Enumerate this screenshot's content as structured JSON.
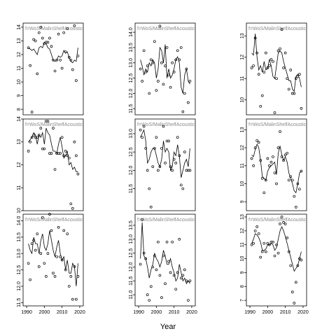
{
  "figure": {
    "xlabel": "Year"
  },
  "chart_data": [
    {
      "type": "scatter",
      "panel_label": "f=WoS/MalinShelfAcoustic",
      "xlim": [
        1988,
        2022
      ],
      "ylim": [
        7.6,
        14.3
      ],
      "yticks": [
        8,
        9,
        10,
        11,
        12,
        13,
        14
      ],
      "yticks_labels": [
        "8",
        "9",
        "10",
        "11",
        "12",
        "13",
        "14"
      ],
      "x_ticks_labels": [],
      "points_x": [
        1991,
        1992,
        1993,
        1994,
        1995,
        1996,
        1997,
        1998,
        1999,
        2000,
        2001,
        2002,
        2003,
        2004,
        2005,
        2006,
        2007,
        2008,
        2009,
        2010,
        2011,
        2012,
        2013,
        2014,
        2015,
        2016,
        2017,
        2018,
        2019
      ],
      "points_y": [
        12.5,
        11.2,
        7.8,
        13.1,
        13.0,
        10.6,
        13.6,
        14.0,
        13.2,
        12.8,
        12.9,
        12.9,
        13.2,
        12.6,
        11.6,
        10.8,
        11.6,
        13.5,
        11.6,
        11.0,
        13.6,
        12.2,
        13.9,
        11.8,
        11.6,
        10.9,
        14.1,
        10.1,
        11.9
      ],
      "line_x": [
        1991,
        1992,
        1993,
        1994,
        1995,
        1996,
        1997,
        1998,
        1999,
        2000,
        2001,
        2002,
        2003,
        2004,
        2005,
        2006,
        2007,
        2008,
        2009,
        2010,
        2011,
        2012,
        2013,
        2014,
        2015,
        2016,
        2017,
        2018,
        2019
      ],
      "line_y": [
        12.5,
        12.4,
        12.3,
        12.4,
        12.2,
        12.0,
        12.5,
        12.6,
        12.5,
        12.9,
        12.8,
        12.5,
        12.4,
        12.0,
        11.6,
        11.5,
        11.6,
        11.9,
        11.8,
        11.9,
        12.3,
        12.1,
        12.2,
        11.8,
        11.5,
        11.4,
        11.6,
        11.5,
        12.5
      ]
    },
    {
      "type": "scatter",
      "panel_label": "f=WoS/MalinShelfAcoustic",
      "xlim": [
        1988,
        2022
      ],
      "ylim": [
        11.3,
        14.3
      ],
      "yticks": [
        11.5,
        12.0,
        12.5,
        13.0,
        13.5,
        14.0
      ],
      "yticks_labels": [
        "11.5",
        "12.0",
        "12.5",
        "13.0",
        "13.5",
        "14.0"
      ],
      "x_ticks_labels": [],
      "points_x": [
        1991,
        1992,
        1993,
        1994,
        1995,
        1996,
        1997,
        1998,
        1999,
        2000,
        2001,
        2002,
        2003,
        2004,
        2005,
        2006,
        2007,
        2008,
        2009,
        2010,
        2011,
        2012,
        2013,
        2014,
        2015,
        2016,
        2017,
        2018,
        2019
      ],
      "points_y": [
        12.8,
        12.4,
        13.4,
        12.7,
        12.9,
        12.0,
        13.1,
        13.0,
        13.7,
        12.1,
        12.4,
        14.2,
        13.0,
        12.3,
        12.9,
        13.5,
        12.6,
        12.2,
        13.0,
        12.7,
        13.1,
        13.4,
        13.1,
        13.5,
        11.4,
        12.0,
        12.8,
        11.7,
        12.4
      ],
      "line_x": [
        1991,
        1992,
        1993,
        1994,
        1995,
        1996,
        1997,
        1998,
        1999,
        2000,
        2001,
        2002,
        2003,
        2004,
        2005,
        2006,
        2007,
        2008,
        2009,
        2010,
        2011,
        2012,
        2013,
        2014,
        2015,
        2016,
        2017,
        2018,
        2019
      ],
      "line_y": [
        13.1,
        12.9,
        12.6,
        12.8,
        12.7,
        13.0,
        12.9,
        13.1,
        13.0,
        12.5,
        12.8,
        13.5,
        13.4,
        13.0,
        13.6,
        12.5,
        12.8,
        12.5,
        12.6,
        12.8,
        13.1,
        13.2,
        13.0,
        12.2,
        12.0,
        12.6,
        12.8,
        12.4,
        12.3
      ]
    },
    {
      "type": "scatter",
      "panel_label": "f=WoS/MalinShelfAcoustic",
      "xlim": [
        1988,
        2022
      ],
      "ylim": [
        9.3,
        13.6
      ],
      "yticks": [
        10,
        11,
        12,
        13
      ],
      "yticks_labels": [
        "10",
        "11",
        "12",
        "13"
      ],
      "x_ticks_labels": [],
      "points_x": [
        1991,
        1992,
        1993,
        1994,
        1995,
        1996,
        1997,
        1998,
        1999,
        2000,
        2001,
        2002,
        2003,
        2004,
        2005,
        2006,
        2007,
        2008,
        2009,
        2010,
        2011,
        2012,
        2013,
        2014,
        2015,
        2016,
        2017,
        2018,
        2019
      ],
      "points_y": [
        11.5,
        11.6,
        12.9,
        12.2,
        11.2,
        9.7,
        10.2,
        11.3,
        12.2,
        11.5,
        11.6,
        11.9,
        11.8,
        9.4,
        11.0,
        12.3,
        12.4,
        13.3,
        11.5,
        12.2,
        11.0,
        10.5,
        11.4,
        10.3,
        10.3,
        11.0,
        11.1,
        11.2,
        9.6
      ],
      "line_x": [
        1991,
        1992,
        1993,
        1994,
        1995,
        1996,
        1997,
        1998,
        1999,
        2000,
        2001,
        2002,
        2003,
        2004,
        2005,
        2006,
        2007,
        2008,
        2009,
        2010,
        2011,
        2012,
        2013,
        2014,
        2015,
        2016,
        2017,
        2018,
        2019
      ],
      "line_y": [
        12.2,
        12.1,
        13.1,
        12.0,
        11.4,
        11.6,
        11.3,
        11.8,
        11.4,
        11.5,
        11.9,
        11.6,
        11.1,
        11.0,
        11.6,
        12.2,
        12.3,
        12.2,
        11.8,
        11.5,
        11.2,
        10.9,
        10.9,
        10.5,
        10.4,
        11.1,
        11.2,
        11.0,
        10.6
      ]
    },
    {
      "type": "scatter",
      "panel_label": "f=WoS/MalinShelfAcoustic",
      "xlim": [
        1988,
        2022
      ],
      "ylim": [
        10.0,
        14.0
      ],
      "yticks": [
        10,
        11,
        12,
        13,
        14
      ],
      "yticks_labels": [
        "10",
        "11",
        "12",
        "13",
        "14"
      ],
      "x_ticks_labels": [],
      "points_x": [
        1991,
        1992,
        1993,
        1994,
        1995,
        1996,
        1997,
        1998,
        1999,
        2000,
        2001,
        2002,
        2003,
        2004,
        2005,
        2006,
        2007,
        2008,
        2009,
        2010,
        2011,
        2012,
        2013,
        2014,
        2015,
        2016,
        2017,
        2018,
        2019
      ],
      "points_y": [
        12.6,
        13.0,
        13.2,
        13.3,
        13.2,
        13.2,
        13.3,
        13.6,
        12.7,
        12.7,
        13.9,
        13.9,
        12.5,
        12.5,
        13.6,
        11.8,
        12.5,
        12.5,
        12.5,
        13.2,
        12.4,
        12.6,
        12.4,
        12.3,
        10.3,
        10.1,
        13.0,
        12.4,
        11.6
      ],
      "line_x": [
        1991,
        1992,
        1993,
        1994,
        1995,
        1996,
        1997,
        1998,
        1999,
        2000,
        2001,
        2002,
        2003,
        2004,
        2005,
        2006,
        2007,
        2008,
        2009,
        2010,
        2011,
        2012,
        2013,
        2014,
        2015,
        2016,
        2017,
        2018,
        2019
      ],
      "line_y": [
        13.0,
        13.1,
        13.2,
        13.4,
        13.3,
        12.9,
        13.3,
        13.2,
        13.4,
        12.9,
        13.6,
        13.4,
        13.3,
        12.9,
        12.6,
        12.6,
        12.5,
        12.9,
        13.2,
        12.8,
        12.3,
        12.4,
        12.6,
        12.0,
        12.1,
        11.8,
        11.9,
        11.7,
        11.7
      ]
    },
    {
      "type": "scatter",
      "panel_label": "f=WoS/MalinShelfAcoustic",
      "xlim": [
        1988,
        2022
      ],
      "ylim": [
        10.9,
        13.4
      ],
      "yticks": [
        11.5,
        12.0,
        12.5,
        13.0
      ],
      "yticks_labels": [
        "11.5",
        "12.0",
        "12.5",
        "13.0"
      ],
      "x_ticks_labels": [],
      "points_x": [
        1991,
        1992,
        1993,
        1994,
        1995,
        1996,
        1997,
        1998,
        1999,
        2000,
        2001,
        2002,
        2003,
        2004,
        2005,
        2006,
        2007,
        2008,
        2009,
        2010,
        2011,
        2012,
        2013,
        2014,
        2015,
        2016,
        2017,
        2018,
        2019
      ],
      "points_y": [
        13.1,
        12.9,
        13.2,
        12.6,
        12.0,
        11.5,
        11.0,
        12.1,
        12.6,
        12.9,
        12.0,
        12.1,
        12.6,
        13.2,
        12.2,
        12.8,
        12.8,
        12.1,
        12.0,
        12.3,
        12.2,
        12.9,
        12.4,
        11.6,
        11.5,
        12.5,
        12.0,
        12.0,
        12.0
      ],
      "line_x": [
        1991,
        1992,
        1993,
        1994,
        1995,
        1996,
        1997,
        1998,
        1999,
        2000,
        2001,
        2002,
        2003,
        2004,
        2005,
        2006,
        2007,
        2008,
        2009,
        2010,
        2011,
        2012,
        2013,
        2014,
        2015,
        2016,
        2017,
        2018,
        2019
      ],
      "line_y": [
        12.9,
        13.0,
        13.1,
        12.8,
        12.2,
        12.3,
        12.5,
        12.6,
        12.6,
        12.4,
        12.2,
        12.1,
        12.3,
        12.8,
        12.5,
        12.6,
        12.5,
        12.0,
        12.1,
        12.5,
        12.4,
        12.7,
        12.4,
        11.8,
        12.0,
        12.2,
        12.3,
        12.1,
        12.6
      ]
    },
    {
      "type": "scatter",
      "panel_label": "f=WoS/MalinShelfAcoustic",
      "xlim": [
        1988,
        2022
      ],
      "ylim": [
        8.5,
        13.6
      ],
      "yticks": [
        9,
        10,
        11,
        12,
        13
      ],
      "yticks_labels": [
        "9",
        "10",
        "11",
        "12",
        "13"
      ],
      "x_ticks_labels": [],
      "points_x": [
        1991,
        1992,
        1993,
        1994,
        1995,
        1996,
        1997,
        1998,
        1999,
        2000,
        2001,
        2002,
        2003,
        2004,
        2005,
        2006,
        2007,
        2008,
        2009,
        2010,
        2011,
        2012,
        2013,
        2014,
        2015,
        2016,
        2017,
        2018,
        2019
      ],
      "points_y": [
        11.4,
        11.0,
        12.0,
        12.4,
        12.3,
        11.3,
        10.3,
        9.5,
        10.2,
        11.4,
        11.0,
        11.2,
        11.5,
        10.6,
        10.0,
        12.0,
        12.9,
        11.5,
        11.3,
        11.6,
        11.7,
        10.2,
        10.4,
        10.2,
        9.3,
        8.7,
        10.0,
        9.7,
        10.7
      ],
      "line_x": [
        1991,
        1992,
        1993,
        1994,
        1995,
        1996,
        1997,
        1998,
        1999,
        2000,
        2001,
        2002,
        2003,
        2004,
        2005,
        2006,
        2007,
        2008,
        2009,
        2010,
        2011,
        2012,
        2013,
        2014,
        2015,
        2016,
        2017,
        2018,
        2019
      ],
      "line_y": [
        11.6,
        11.5,
        11.9,
        12.2,
        12.0,
        11.3,
        10.4,
        10.3,
        10.2,
        10.7,
        10.9,
        11.0,
        11.1,
        11.2,
        10.5,
        11.7,
        12.1,
        11.6,
        11.3,
        11.5,
        11.2,
        10.6,
        10.3,
        10.0,
        9.6,
        9.5,
        10.0,
        10.6,
        10.7
      ]
    },
    {
      "type": "scatter",
      "panel_label": "f=WoS/MalinShelfAcoustic",
      "xlim": [
        1988,
        2022
      ],
      "ylim": [
        11.4,
        14.2
      ],
      "yticks": [
        11.5,
        12.0,
        12.5,
        13.0,
        13.5,
        14.0
      ],
      "yticks_labels": [
        "11.5",
        "12.0",
        "12.5",
        "13.0",
        "13.5",
        "14.0"
      ],
      "x_ticks_labels": [
        "1990",
        "2000",
        "2010",
        "2020"
      ],
      "x_ticks": [
        1990,
        2000,
        2010,
        2020
      ],
      "points_x": [
        1991,
        1992,
        1993,
        1994,
        1995,
        1996,
        1997,
        1998,
        1999,
        2000,
        2001,
        2002,
        2003,
        2004,
        2005,
        2006,
        2007,
        2008,
        2009,
        2010,
        2011,
        2012,
        2013,
        2014,
        2015,
        2016,
        2017,
        2018,
        2019
      ],
      "points_y": [
        12.7,
        12.2,
        13.3,
        13.4,
        13.1,
        13.6,
        12.6,
        13.0,
        14.1,
        12.7,
        12.3,
        13.0,
        14.2,
        13.7,
        12.4,
        12.3,
        12.9,
        13.8,
        12.9,
        12.8,
        13.7,
        12.5,
        13.6,
        12.0,
        12.3,
        11.6,
        12.6,
        11.6,
        12.3
      ],
      "line_x": [
        1991,
        1992,
        1993,
        1994,
        1995,
        1996,
        1997,
        1998,
        1999,
        2000,
        2001,
        2002,
        2003,
        2004,
        2005,
        2006,
        2007,
        2008,
        2009,
        2010,
        2011,
        2012,
        2013,
        2014,
        2015,
        2016,
        2017,
        2018,
        2019
      ],
      "line_y": [
        13.3,
        13.1,
        13.0,
        13.5,
        13.3,
        13.3,
        13.0,
        13.4,
        13.6,
        13.2,
        13.1,
        13.3,
        13.7,
        13.4,
        13.1,
        12.9,
        13.2,
        13.4,
        13.0,
        12.8,
        12.9,
        12.5,
        12.8,
        12.4,
        12.4,
        12.7,
        12.6,
        12.0,
        12.7
      ]
    },
    {
      "type": "scatter",
      "panel_label": "f=WoS/MalinShelfAcoustic",
      "xlim": [
        1988,
        2022
      ],
      "ylim": [
        10.6,
        13.9
      ],
      "yticks": [
        11.0,
        11.5,
        12.0,
        12.5,
        13.0,
        13.5
      ],
      "yticks_labels": [
        "11.0",
        "11.5",
        "12.0",
        "12.5",
        "13.0",
        "13.5"
      ],
      "x_ticks_labels": [
        "1990",
        "2000",
        "2010",
        "2020"
      ],
      "x_ticks": [
        1990,
        2000,
        2010,
        2020
      ],
      "points_x": [
        1991,
        1992,
        1993,
        1994,
        1995,
        1996,
        1997,
        1998,
        1999,
        2000,
        2001,
        2002,
        2003,
        2004,
        2005,
        2006,
        2007,
        2008,
        2009,
        2010,
        2011,
        2012,
        2013,
        2014,
        2015,
        2016,
        2017,
        2018,
        2019
      ],
      "points_y": [
        12.1,
        13.7,
        12.5,
        12.3,
        11.0,
        10.8,
        11.3,
        12.0,
        12.4,
        11.9,
        12.9,
        11.7,
        10.9,
        12.4,
        11.4,
        12.9,
        12.2,
        11.8,
        12.9,
        11.7,
        11.2,
        11.8,
        13.0,
        11.6,
        11.7,
        11.9,
        11.5,
        10.8,
        11.5
      ],
      "line_x": [
        1991,
        1992,
        1993,
        1994,
        1995,
        1996,
        1997,
        1998,
        1999,
        2000,
        2001,
        2002,
        2003,
        2004,
        2005,
        2006,
        2007,
        2008,
        2009,
        2010,
        2011,
        2012,
        2013,
        2014,
        2015,
        2016,
        2017,
        2018,
        2019
      ],
      "line_y": [
        12.3,
        13.6,
        12.4,
        12.3,
        12.0,
        11.6,
        11.9,
        12.1,
        12.5,
        12.3,
        12.2,
        12.0,
        12.2,
        12.6,
        12.4,
        12.1,
        12.1,
        12.3,
        12.0,
        11.8,
        11.5,
        11.6,
        12.1,
        11.8,
        11.5,
        11.6,
        11.4,
        11.5,
        11.4
      ]
    },
    {
      "type": "scatter",
      "panel_label": "f=WoS/MalinShelfAcoustic",
      "xlim": [
        1988,
        2022
      ],
      "ylim": [
        6.6,
        13.2
      ],
      "yticks": [
        7,
        8,
        9,
        10,
        11,
        12,
        13
      ],
      "yticks_labels": [
        "7",
        "8",
        "9",
        "10",
        "11",
        "12",
        "13"
      ],
      "x_ticks_labels": [
        "1990",
        "2000",
        "2010",
        "2020"
      ],
      "x_ticks": [
        1990,
        2000,
        2010,
        2020
      ],
      "points_x": [
        1991,
        1992,
        1993,
        1994,
        1995,
        1996,
        1997,
        1998,
        1999,
        2000,
        2001,
        2002,
        2003,
        2004,
        2005,
        2006,
        2007,
        2008,
        2009,
        2010,
        2011,
        2012,
        2013,
        2014,
        2015,
        2016,
        2017,
        2018,
        2019
      ],
      "points_y": [
        11.0,
        11.1,
        12.0,
        12.3,
        11.8,
        10.1,
        10.5,
        11.1,
        10.5,
        11.1,
        11.0,
        11.2,
        11.2,
        10.2,
        11.0,
        10.4,
        12.5,
        13.0,
        12.6,
        12.5,
        11.5,
        10.5,
        9.5,
        7.6,
        6.8,
        8.3,
        9.5,
        10.0,
        9.9
      ],
      "line_x": [
        1991,
        1992,
        1993,
        1994,
        1995,
        1996,
        1997,
        1998,
        1999,
        2000,
        2001,
        2002,
        2003,
        2004,
        2005,
        2006,
        2007,
        2008,
        2009,
        2010,
        2011,
        2012,
        2013,
        2014,
        2015,
        2016,
        2017,
        2018,
        2019
      ],
      "line_y": [
        11.1,
        11.4,
        11.8,
        11.7,
        11.5,
        11.2,
        10.6,
        10.6,
        10.7,
        11.0,
        11.0,
        11.1,
        11.0,
        10.6,
        10.8,
        11.4,
        12.0,
        12.3,
        12.0,
        11.6,
        11.1,
        10.6,
        10.1,
        9.6,
        9.1,
        9.3,
        9.5,
        10.0,
        10.5
      ]
    }
  ]
}
